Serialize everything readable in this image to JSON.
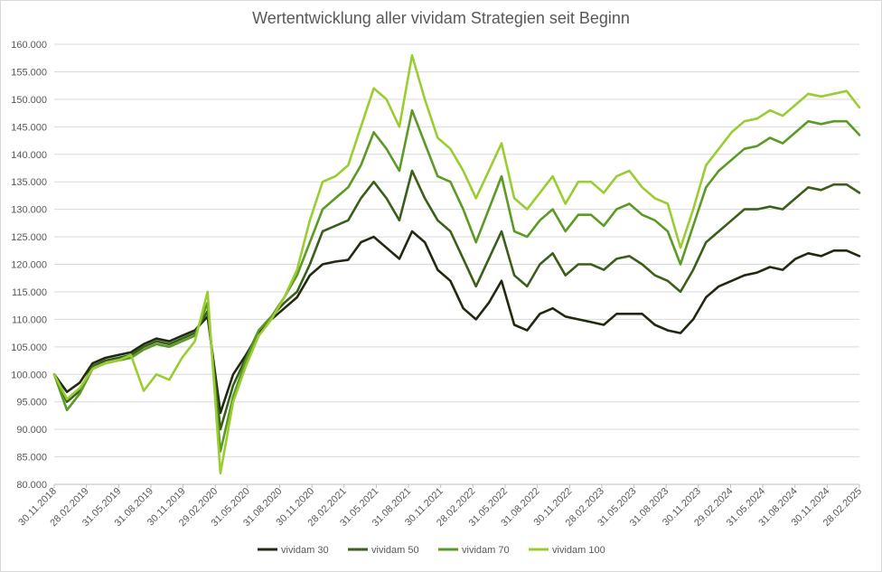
{
  "chart_data": {
    "type": "line",
    "title": "Wertentwicklung aller vividam Strategien seit Beginn",
    "xlabel": "",
    "ylabel": "",
    "ylim": [
      80000,
      160000
    ],
    "y_ticks": [
      "80.000",
      "85.000",
      "90.000",
      "95.000",
      "100.000",
      "105.000",
      "110.000",
      "115.000",
      "120.000",
      "125.000",
      "130.000",
      "135.000",
      "140.000",
      "145.000",
      "150.000",
      "155.000",
      "160.000"
    ],
    "x_ticks": [
      "30.11.2018",
      "28.02.2019",
      "31.05.2019",
      "31.08.2019",
      "30.11.2019",
      "29.02.2020",
      "31.05.2020",
      "31.08.2020",
      "30.11.2020",
      "28.02.2021",
      "31.05.2021",
      "31.08.2021",
      "30.11.2021",
      "28.02.2022",
      "31.05.2022",
      "31.08.2022",
      "30.11.2022",
      "28.02.2023",
      "31.05.2023",
      "31.08.2023",
      "30.11.2023",
      "29.02.2024",
      "31.05.2024",
      "31.08.2024",
      "30.11.2024",
      "28.02.2025"
    ],
    "grid": "horizontal",
    "legend": "bottom",
    "series": [
      {
        "name": "vividam 30",
        "color": "#1f2a10",
        "values": [
          100000,
          96800,
          98500,
          102000,
          103000,
          103500,
          104000,
          105500,
          106500,
          106000,
          107000,
          108000,
          110500,
          93000,
          100000,
          103500,
          107500,
          110000,
          112000,
          114000,
          118000,
          120000,
          120500,
          120800,
          124000,
          125000,
          123000,
          121000,
          126000,
          124000,
          119000,
          117000,
          112000,
          110000,
          113000,
          117000,
          109000,
          108000,
          111000,
          112000,
          110500,
          110000,
          109500,
          109000,
          111000,
          111000,
          111000,
          109000,
          108000,
          107500,
          110000,
          114000,
          116000,
          117000,
          118000,
          118500,
          119500,
          119000,
          121000,
          122000,
          121500,
          122500,
          122500,
          121500
        ]
      },
      {
        "name": "vividam 50",
        "color": "#3a5f1a",
        "values": [
          100000,
          95000,
          97000,
          101500,
          102500,
          103000,
          103500,
          105000,
          106000,
          105500,
          106500,
          107500,
          111500,
          90000,
          98000,
          103000,
          108000,
          110500,
          113000,
          115000,
          120000,
          126000,
          127000,
          128000,
          132000,
          135000,
          132000,
          128000,
          137000,
          132000,
          128000,
          126000,
          121000,
          116000,
          121000,
          126000,
          118000,
          116000,
          120000,
          122000,
          118000,
          120000,
          120000,
          119000,
          121000,
          121500,
          120000,
          118000,
          117000,
          115000,
          119000,
          124000,
          126000,
          128000,
          130000,
          130000,
          130500,
          130000,
          132000,
          134000,
          133500,
          134500,
          134500,
          133000
        ]
      },
      {
        "name": "vividam 70",
        "color": "#5c9a26",
        "values": [
          100000,
          93500,
          96500,
          101000,
          102000,
          102500,
          103000,
          104500,
          105500,
          105000,
          106000,
          107000,
          113000,
          86000,
          96000,
          102500,
          108000,
          110500,
          114000,
          118000,
          124000,
          130000,
          132000,
          134000,
          138000,
          144000,
          141000,
          137000,
          148000,
          142000,
          136000,
          135000,
          130000,
          124000,
          130000,
          136000,
          126000,
          125000,
          128000,
          130000,
          126000,
          129000,
          129000,
          127000,
          130000,
          131000,
          129000,
          128000,
          126000,
          120000,
          127000,
          134000,
          137000,
          139000,
          141000,
          141500,
          143000,
          142000,
          144000,
          146000,
          145500,
          146000,
          146000,
          143500
        ]
      },
      {
        "name": "vividam 100",
        "color": "#9acd32",
        "values": [
          100000,
          95500,
          97500,
          101000,
          102000,
          102500,
          103500,
          97000,
          100000,
          99000,
          103000,
          106000,
          115000,
          82000,
          95000,
          101500,
          107000,
          110000,
          114000,
          119000,
          128000,
          135000,
          136000,
          138000,
          145000,
          152000,
          150000,
          145000,
          158000,
          150000,
          143000,
          141000,
          137000,
          132000,
          137000,
          142000,
          132000,
          130000,
          133000,
          136000,
          131000,
          135000,
          135000,
          133000,
          136000,
          137000,
          134000,
          132000,
          131000,
          123000,
          130000,
          138000,
          141000,
          144000,
          146000,
          146500,
          148000,
          147000,
          149000,
          151000,
          150500,
          151000,
          151500,
          148500
        ]
      }
    ]
  }
}
